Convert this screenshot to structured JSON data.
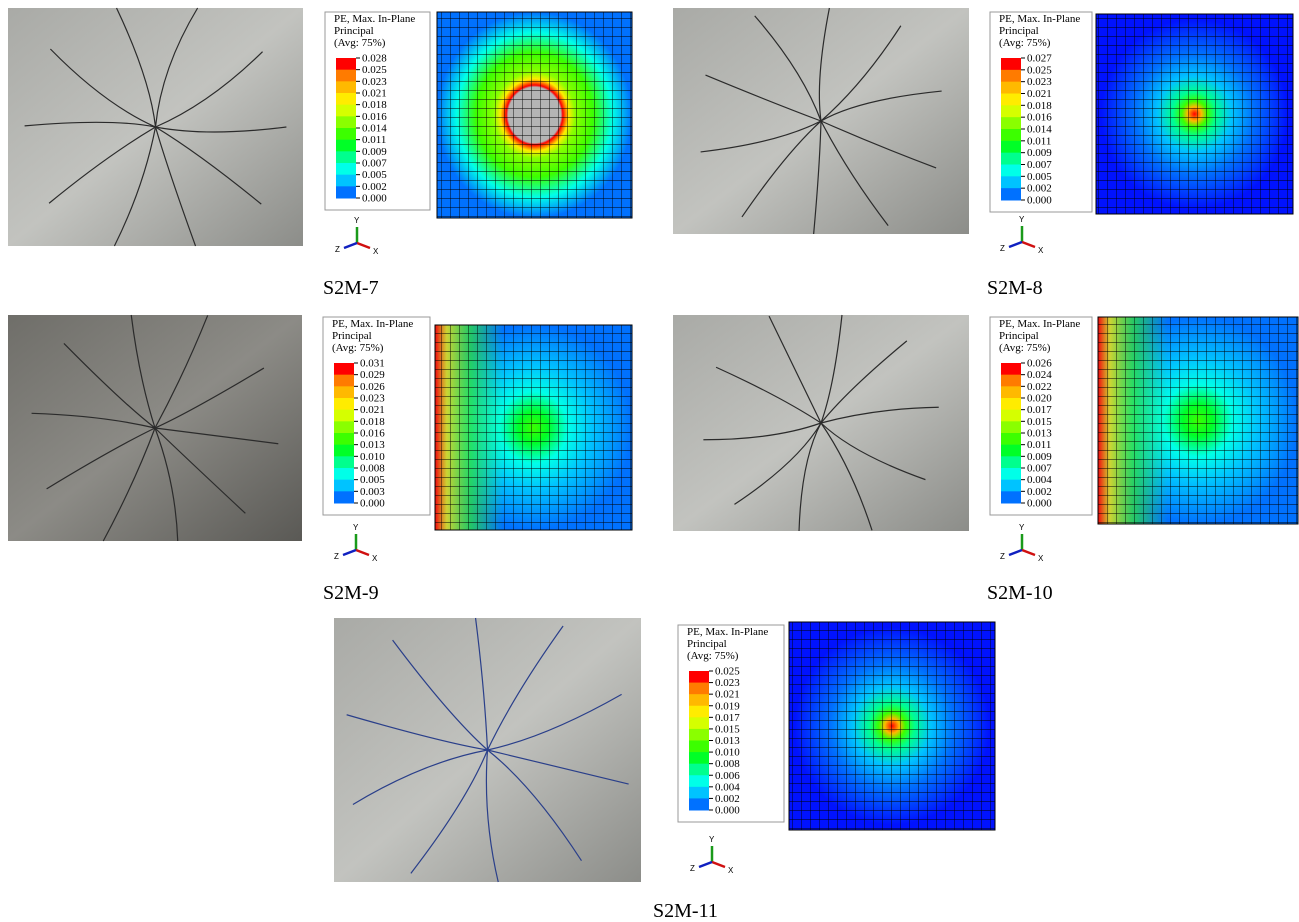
{
  "triad": {
    "y": "Y",
    "z": "Z",
    "x": "X"
  },
  "panels": [
    {
      "caption": "S2M-7",
      "legend": {
        "title": [
          "PE, Max. In-Plane",
          "Principal",
          "(Avg: 75%)"
        ],
        "values": [
          "0.028",
          "0.025",
          "0.023",
          "0.021",
          "0.018",
          "0.016",
          "0.014",
          "0.011",
          "0.009",
          "0.007",
          "0.005",
          "0.002",
          "0.000"
        ]
      }
    },
    {
      "caption": "S2M-8",
      "legend": {
        "title": [
          "PE, Max. In-Plane",
          "Principal",
          "(Avg: 75%)"
        ],
        "values": [
          "0.027",
          "0.025",
          "0.023",
          "0.021",
          "0.018",
          "0.016",
          "0.014",
          "0.011",
          "0.009",
          "0.007",
          "0.005",
          "0.002",
          "0.000"
        ]
      }
    },
    {
      "caption": "S2M-9",
      "legend": {
        "title": [
          "PE, Max. In-Plane",
          "Principal",
          "(Avg: 75%)"
        ],
        "values": [
          "0.031",
          "0.029",
          "0.026",
          "0.023",
          "0.021",
          "0.018",
          "0.016",
          "0.013",
          "0.010",
          "0.008",
          "0.005",
          "0.003",
          "0.000"
        ]
      }
    },
    {
      "caption": "S2M-10",
      "legend": {
        "title": [
          "PE, Max. In-Plane",
          "Principal",
          "(Avg: 75%)"
        ],
        "values": [
          "0.026",
          "0.024",
          "0.022",
          "0.020",
          "0.017",
          "0.015",
          "0.013",
          "0.011",
          "0.009",
          "0.007",
          "0.004",
          "0.002",
          "0.000"
        ]
      }
    },
    {
      "caption": "S2M-11",
      "legend": {
        "title": [
          "PE, Max. In-Plane",
          "Principal",
          "(Avg: 75%)"
        ],
        "values": [
          "0.025",
          "0.023",
          "0.021",
          "0.019",
          "0.017",
          "0.015",
          "0.013",
          "0.010",
          "0.008",
          "0.006",
          "0.004",
          "0.002",
          "0.000"
        ]
      }
    }
  ]
}
